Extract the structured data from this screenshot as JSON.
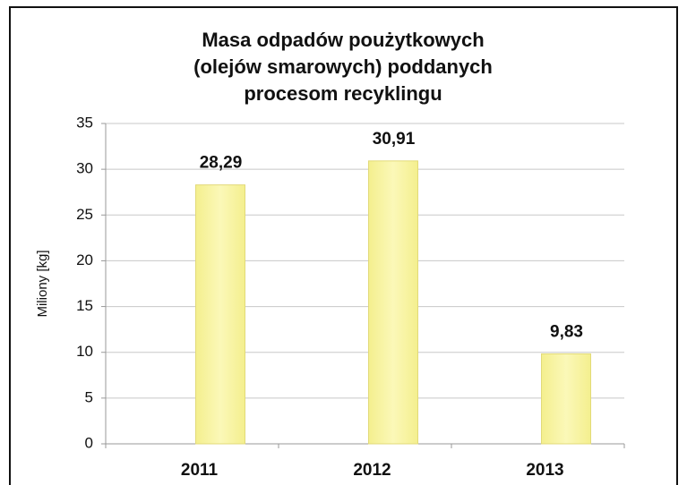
{
  "chart_data": {
    "type": "bar",
    "title": [
      "Masa odpadów poużytkowych",
      "(olejów smarowych) poddanych",
      "procesom recyklingu"
    ],
    "y_label": "Miliony [kg]",
    "categories": [
      "2011",
      "2012",
      "2013"
    ],
    "values": [
      28.29,
      30.91,
      9.83
    ],
    "value_labels": [
      "28,29",
      "30,91",
      "9,83"
    ],
    "color": "#f4ef8e",
    "ylim": [
      0,
      35
    ],
    "yticks": [
      0,
      5,
      10,
      15,
      20,
      25,
      30,
      35
    ],
    "grid": true
  }
}
